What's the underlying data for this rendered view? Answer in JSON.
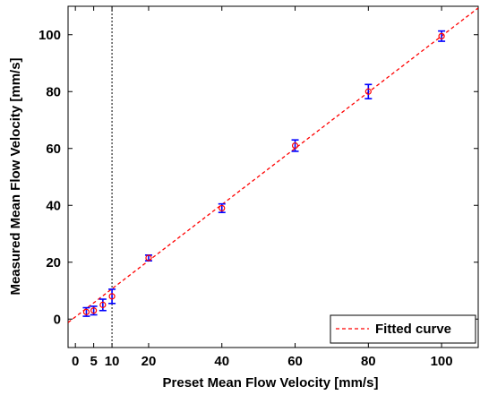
{
  "chart_data": {
    "type": "scatter",
    "xlabel": "Preset Mean Flow Velocity [mm/s]",
    "ylabel": "Measured Mean Flow Velocity [mm/s]",
    "xlim": [
      -2,
      110
    ],
    "ylim": [
      -10,
      110
    ],
    "xticks": [
      0,
      5,
      10,
      20,
      40,
      60,
      80,
      100
    ],
    "yticks": [
      0,
      20,
      40,
      60,
      80,
      100
    ],
    "xtick_labels": [
      "0",
      "5",
      "10",
      "20",
      "40",
      "60",
      "80",
      "100"
    ],
    "ytick_labels": [
      "0",
      "20",
      "40",
      "60",
      "80",
      "100"
    ],
    "grid": false,
    "legend": {
      "position": "bottom-right",
      "label": "Fitted curve"
    },
    "reference_line_x": 10,
    "series": [
      {
        "name": "",
        "style": "markers-with-error-bars",
        "color": "#0000ff",
        "marker_color": "#ff0000",
        "points": [
          {
            "x": 3,
            "y": 2.5,
            "err": 1.5
          },
          {
            "x": 5,
            "y": 3.0,
            "err": 1.5
          },
          {
            "x": 7.5,
            "y": 5.0,
            "err": 2.0
          },
          {
            "x": 10,
            "y": 8.0,
            "err": 2.5
          },
          {
            "x": 20,
            "y": 21.5,
            "err": 1.0
          },
          {
            "x": 40,
            "y": 39.0,
            "err": 1.5
          },
          {
            "x": 60,
            "y": 61.0,
            "err": 2.0
          },
          {
            "x": 80,
            "y": 80.0,
            "err": 2.5
          },
          {
            "x": 100,
            "y": 99.5,
            "err": 1.8
          }
        ]
      },
      {
        "name": "Fitted curve",
        "style": "dashed-line",
        "color": "#ff0000",
        "x": [
          -2,
          110
        ],
        "y": [
          -1.2,
          109.4
        ]
      }
    ]
  }
}
